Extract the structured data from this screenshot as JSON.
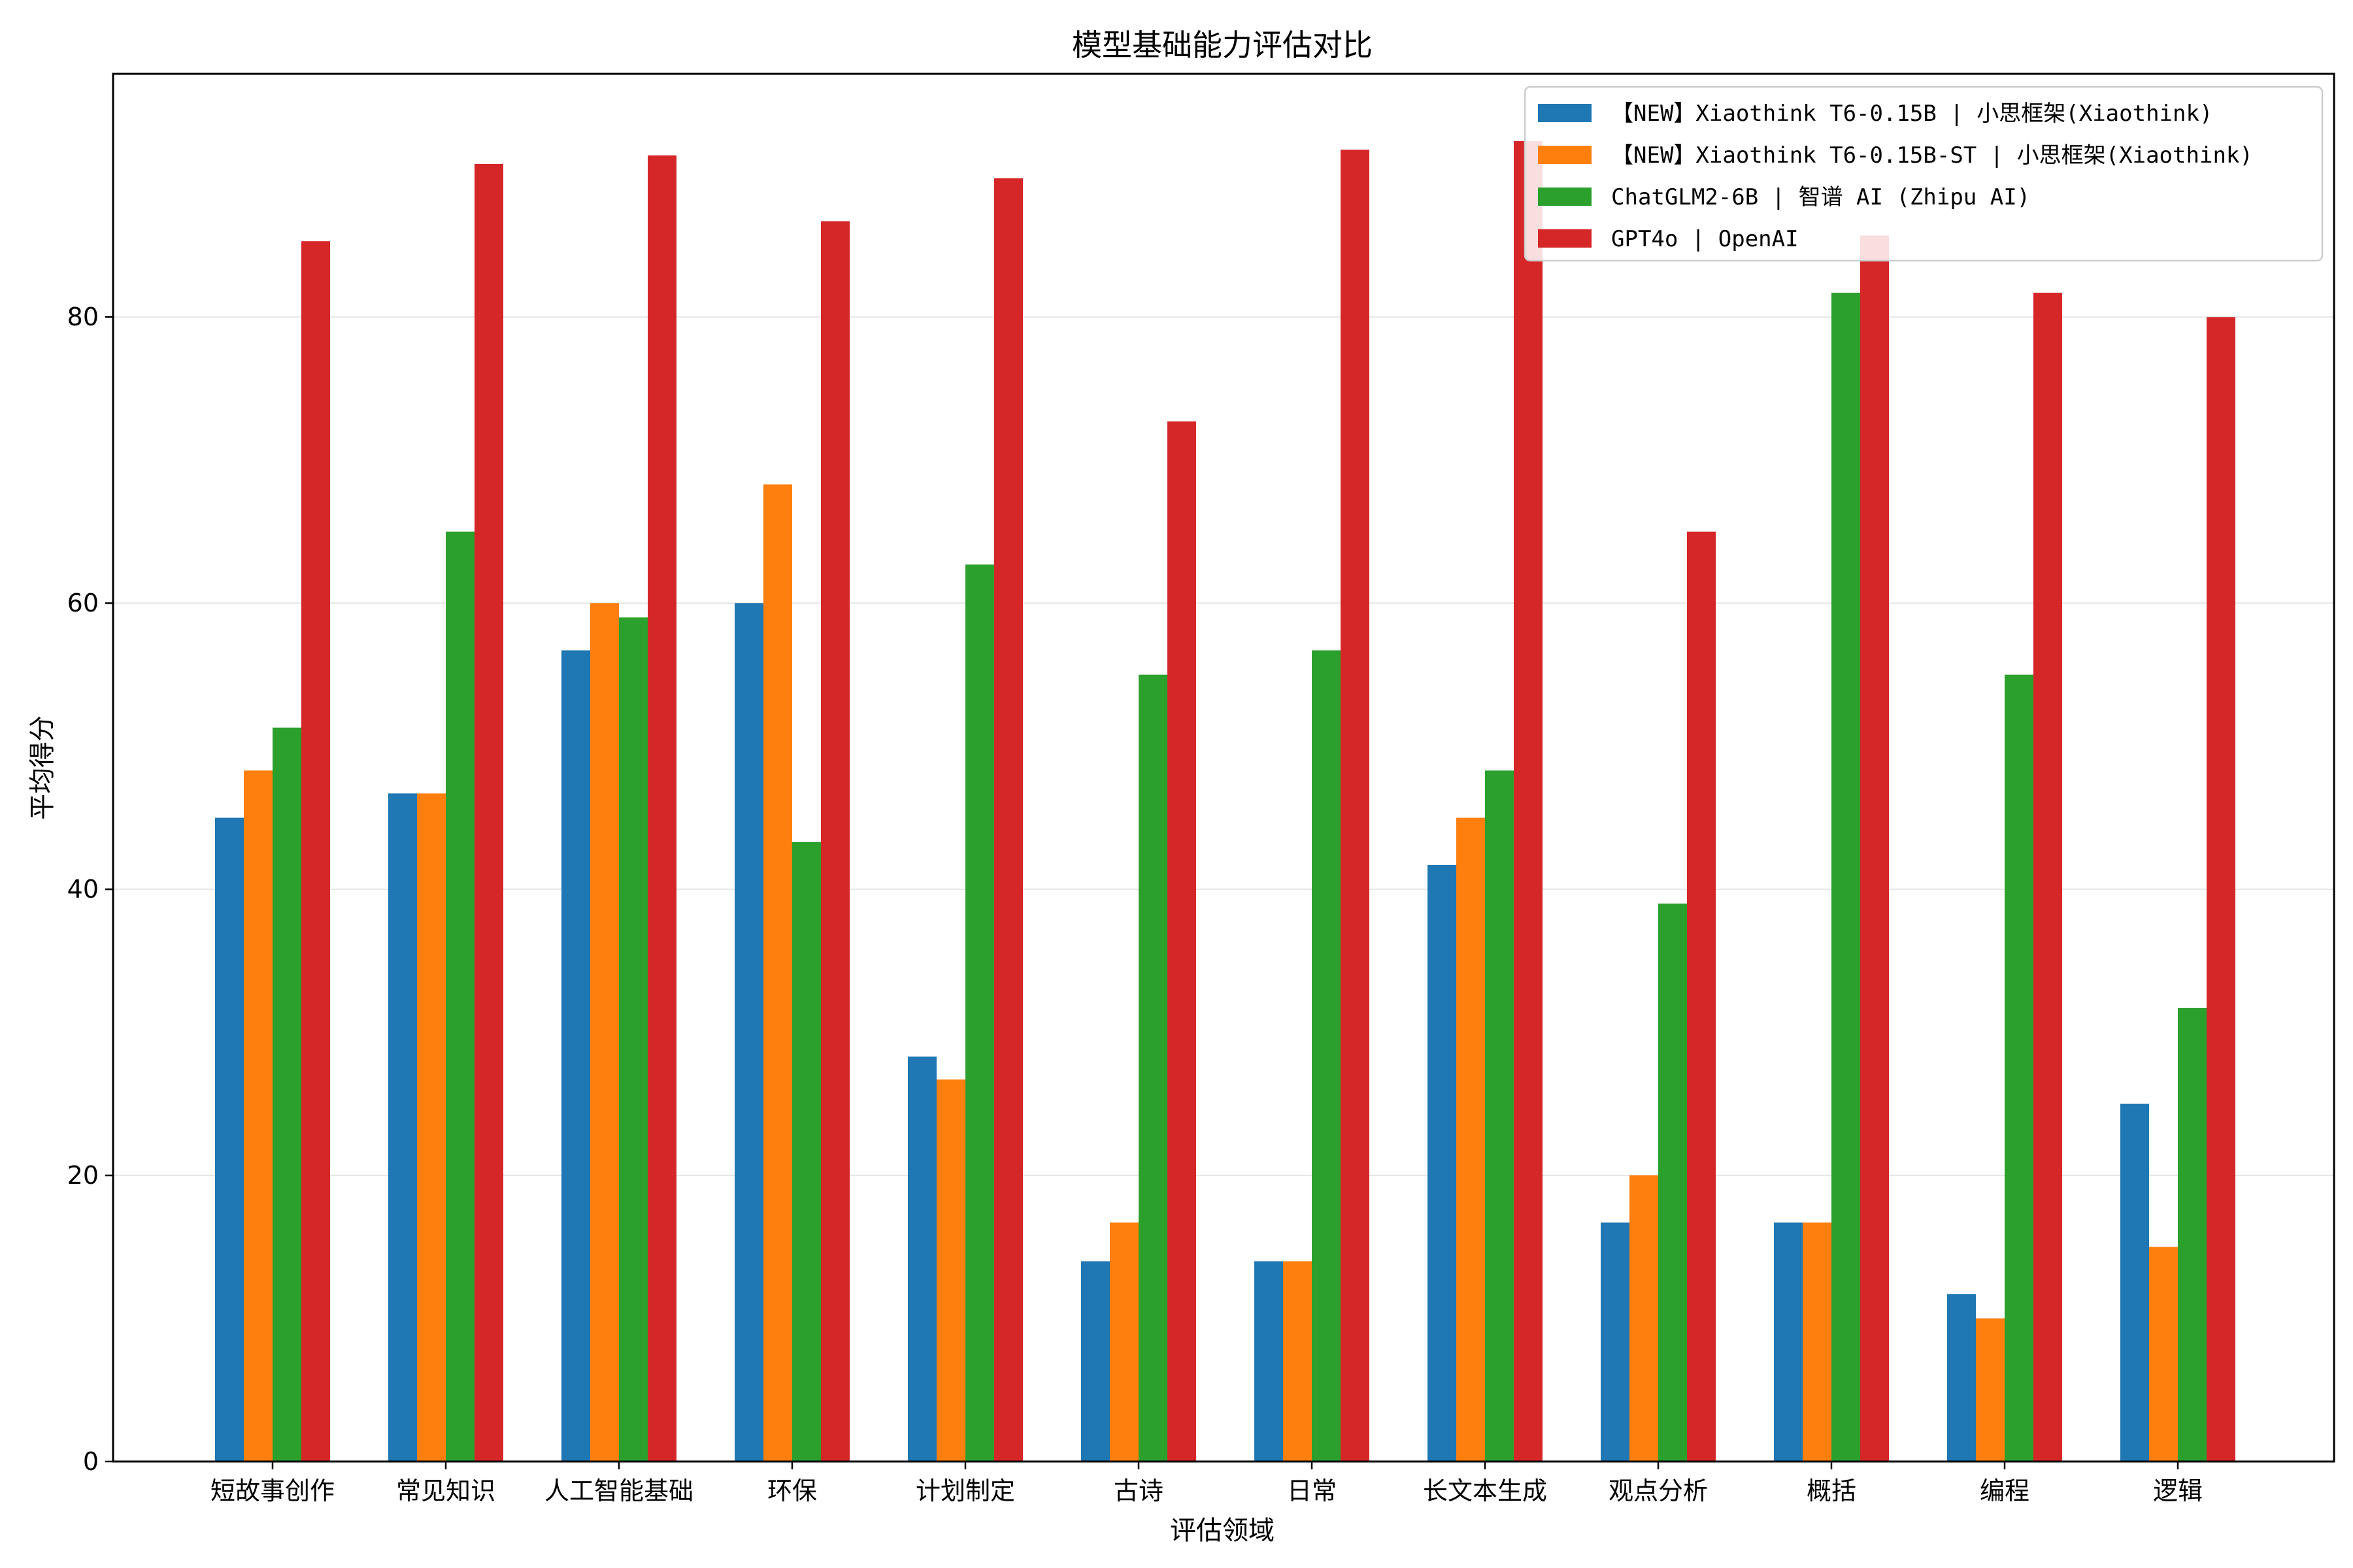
{
  "chart_data": {
    "type": "bar",
    "title": "模型基础能力评估对比",
    "xlabel": "评估领域",
    "ylabel": "平均得分",
    "ylim": [
      0,
      97
    ],
    "yticks": [
      0,
      20,
      40,
      60,
      80
    ],
    "grid": "y",
    "legend_position": "top-right",
    "categories": [
      "短故事创作",
      "常见知识",
      "人工智能基础",
      "环保",
      "计划制定",
      "古诗",
      "日常",
      "长文本生成",
      "观点分析",
      "概括",
      "编程",
      "逻辑"
    ],
    "series": [
      {
        "name": "【NEW】Xiaothink T6-0.15B  | 小思框架(Xiaothink)",
        "color": "#1f77b4",
        "values": [
          45.0,
          46.7,
          56.7,
          60.0,
          28.3,
          14.0,
          14.0,
          41.7,
          16.7,
          16.7,
          11.7,
          25.0
        ]
      },
      {
        "name": "【NEW】Xiaothink T6-0.15B-ST  | 小思框架(Xiaothink)",
        "color": "#ff7f0e",
        "values": [
          48.3,
          46.7,
          60.0,
          68.3,
          26.7,
          16.7,
          14.0,
          45.0,
          20.0,
          16.7,
          10.0,
          15.0
        ]
      },
      {
        "name": "ChatGLM2-6B | 智谱 AI (Zhipu AI)",
        "color": "#2ca02c",
        "values": [
          51.3,
          65.0,
          59.0,
          43.3,
          62.7,
          55.0,
          56.7,
          48.3,
          39.0,
          81.7,
          55.0,
          31.7
        ]
      },
      {
        "name": "GPT4o | OpenAI",
        "color": "#d62728",
        "values": [
          85.3,
          90.7,
          91.3,
          86.7,
          89.7,
          72.7,
          91.7,
          92.3,
          65.0,
          85.7,
          81.7,
          80.0
        ]
      }
    ]
  }
}
